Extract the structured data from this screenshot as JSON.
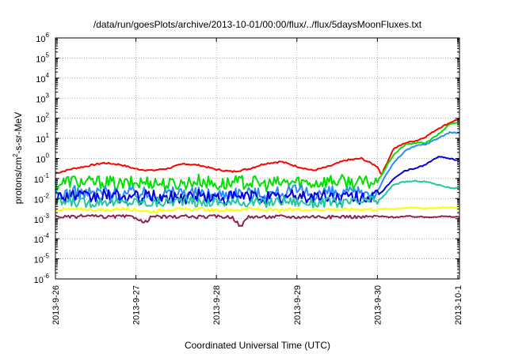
{
  "chart_data": {
    "type": "line",
    "title": "/data/run/goesPlots/archive/2013-10-01/00:00/flux/../flux/5daysMoonFluxes.txt",
    "xlabel": "Coordinated Universal Time (UTC)",
    "ylabel": "protons/cm2-s-sr-MeV",
    "ylabel_parts": [
      "protons/cm",
      "2",
      "-s-sr-MeV"
    ],
    "y_scale": "log",
    "ylim_exponent": [
      -6,
      6
    ],
    "y_ticks": [
      {
        "base": "10",
        "exp": "6"
      },
      {
        "base": "10",
        "exp": "5"
      },
      {
        "base": "10",
        "exp": "4"
      },
      {
        "base": "10",
        "exp": "3"
      },
      {
        "base": "10",
        "exp": "2"
      },
      {
        "base": "10",
        "exp": "1"
      },
      {
        "base": "10",
        "exp": "0"
      },
      {
        "base": "10",
        "exp": "-1"
      },
      {
        "base": "10",
        "exp": "-2"
      },
      {
        "base": "10",
        "exp": "-3"
      },
      {
        "base": "10",
        "exp": "-4"
      },
      {
        "base": "10",
        "exp": "-5"
      },
      {
        "base": "10",
        "exp": "-6"
      }
    ],
    "x_ticks": [
      "2013-9-26",
      "2013-9-27",
      "2013-9-28",
      "2013-9-29",
      "2013-9-30",
      "2013-10-1"
    ],
    "x_range_days": [
      0,
      5.02
    ],
    "grid": true,
    "legend": "none",
    "series": [
      {
        "color": "#ff0000",
        "x": [
          0,
          0.2,
          0.4,
          0.6,
          0.8,
          1.0,
          1.2,
          1.4,
          1.6,
          1.8,
          2.0,
          2.2,
          2.4,
          2.6,
          2.8,
          3.0,
          3.2,
          3.4,
          3.6,
          3.8,
          4.0,
          4.05,
          4.2,
          4.35,
          4.5,
          4.6,
          4.75,
          4.9,
          5.02
        ],
        "y": [
          0.18,
          0.3,
          0.42,
          0.6,
          0.5,
          0.3,
          0.25,
          0.32,
          0.55,
          0.45,
          0.28,
          0.22,
          0.3,
          0.55,
          0.7,
          0.4,
          0.25,
          0.4,
          0.8,
          1.0,
          0.4,
          0.15,
          3.0,
          6.0,
          8.0,
          12.0,
          30.0,
          60.0,
          95.0
        ]
      },
      {
        "color": "#00e000",
        "x": [
          0,
          0.2,
          0.4,
          0.6,
          0.8,
          1.0,
          1.2,
          1.4,
          1.6,
          1.8,
          2.0,
          2.2,
          2.4,
          2.6,
          2.8,
          3.0,
          3.2,
          3.4,
          3.6,
          3.8,
          4.0,
          4.05,
          4.2,
          4.35,
          4.5,
          4.6,
          4.75,
          4.9,
          5.02
        ],
        "y": [
          0.05,
          0.08,
          0.06,
          0.07,
          0.05,
          0.06,
          0.07,
          0.05,
          0.06,
          0.08,
          0.05,
          0.06,
          0.07,
          0.05,
          0.06,
          0.07,
          0.06,
          0.08,
          0.07,
          0.06,
          0.07,
          0.15,
          1.5,
          5.0,
          6.0,
          6.0,
          15.0,
          50.0,
          60.0
        ]
      },
      {
        "color": "#2a8cff",
        "x": [
          0,
          0.2,
          0.4,
          0.6,
          0.8,
          1.0,
          1.2,
          1.4,
          1.6,
          1.8,
          2.0,
          2.2,
          2.4,
          2.6,
          2.8,
          3.0,
          3.2,
          3.4,
          3.6,
          3.8,
          4.0,
          4.05,
          4.2,
          4.35,
          4.5,
          4.6,
          4.75,
          4.9,
          5.02
        ],
        "y": [
          0.015,
          0.02,
          0.018,
          0.022,
          0.016,
          0.02,
          0.015,
          0.018,
          0.022,
          0.017,
          0.015,
          0.02,
          0.018,
          0.016,
          0.02,
          0.022,
          0.018,
          0.02,
          0.016,
          0.02,
          0.02,
          0.06,
          0.6,
          2.5,
          4.5,
          5.0,
          10.0,
          20.0,
          18.0
        ]
      },
      {
        "color": "#0000e0",
        "x": [
          0,
          0.2,
          0.4,
          0.6,
          0.8,
          1.0,
          1.2,
          1.4,
          1.6,
          1.8,
          2.0,
          2.2,
          2.4,
          2.6,
          2.8,
          3.0,
          3.2,
          3.4,
          3.6,
          3.8,
          4.0,
          4.05,
          4.2,
          4.35,
          4.5,
          4.6,
          4.75,
          4.9,
          5.02
        ],
        "y": [
          0.012,
          0.015,
          0.01,
          0.014,
          0.012,
          0.011,
          0.013,
          0.01,
          0.012,
          0.014,
          0.01,
          0.011,
          0.013,
          0.012,
          0.01,
          0.014,
          0.012,
          0.013,
          0.011,
          0.012,
          0.013,
          0.02,
          0.1,
          0.25,
          0.35,
          0.5,
          1.2,
          1.0,
          0.75
        ]
      },
      {
        "color": "#20c8a0",
        "x": [
          0,
          0.2,
          0.4,
          0.6,
          0.8,
          1.0,
          1.2,
          1.4,
          1.6,
          1.8,
          2.0,
          2.2,
          2.4,
          2.6,
          2.8,
          3.0,
          3.2,
          3.4,
          3.6,
          3.8,
          4.0,
          4.05,
          4.2,
          4.35,
          4.5,
          4.6,
          4.75,
          4.9,
          5.02
        ],
        "y": [
          0.006,
          0.007,
          0.006,
          0.008,
          0.006,
          0.007,
          0.006,
          0.007,
          0.008,
          0.006,
          0.007,
          0.006,
          0.007,
          0.006,
          0.008,
          0.007,
          0.006,
          0.007,
          0.006,
          0.007,
          0.008,
          0.01,
          0.05,
          0.07,
          0.075,
          0.07,
          0.05,
          0.035,
          0.032
        ]
      },
      {
        "color": "#ffff00",
        "x": [
          0,
          0.2,
          0.4,
          0.6,
          0.8,
          1.0,
          1.2,
          1.4,
          1.6,
          1.8,
          2.0,
          2.2,
          2.4,
          2.6,
          2.8,
          3.0,
          3.2,
          3.4,
          3.6,
          3.8,
          4.0,
          4.05,
          4.2,
          4.35,
          4.5,
          4.6,
          4.75,
          4.9,
          5.02
        ],
        "y": [
          0.003,
          0.0028,
          0.003,
          0.0025,
          0.0032,
          0.0028,
          0.0022,
          0.003,
          0.0028,
          0.003,
          0.0025,
          0.0028,
          0.003,
          0.0028,
          0.0025,
          0.003,
          0.0028,
          0.003,
          0.0028,
          0.003,
          0.003,
          0.003,
          0.0032,
          0.0035,
          0.0035,
          0.0033,
          0.0035,
          0.0036,
          0.0035
        ]
      },
      {
        "color": "#8b2252",
        "x": [
          0,
          0.2,
          0.4,
          0.6,
          0.8,
          1.0,
          1.1,
          1.2,
          1.4,
          1.6,
          1.8,
          2.0,
          2.2,
          2.3,
          2.4,
          2.6,
          2.8,
          3.0,
          3.2,
          3.4,
          3.6,
          3.8,
          4.0,
          4.2,
          4.4,
          4.6,
          4.8,
          5.02
        ],
        "y": [
          0.0013,
          0.0012,
          0.0014,
          0.0012,
          0.0013,
          0.0012,
          0.0006,
          0.0013,
          0.0012,
          0.0013,
          0.0012,
          0.0013,
          0.0012,
          0.0004,
          0.0013,
          0.0012,
          0.0013,
          0.0012,
          0.0013,
          0.0012,
          0.0013,
          0.0012,
          0.0013,
          0.0012,
          0.0013,
          0.0012,
          0.0013,
          0.0012
        ]
      }
    ]
  }
}
